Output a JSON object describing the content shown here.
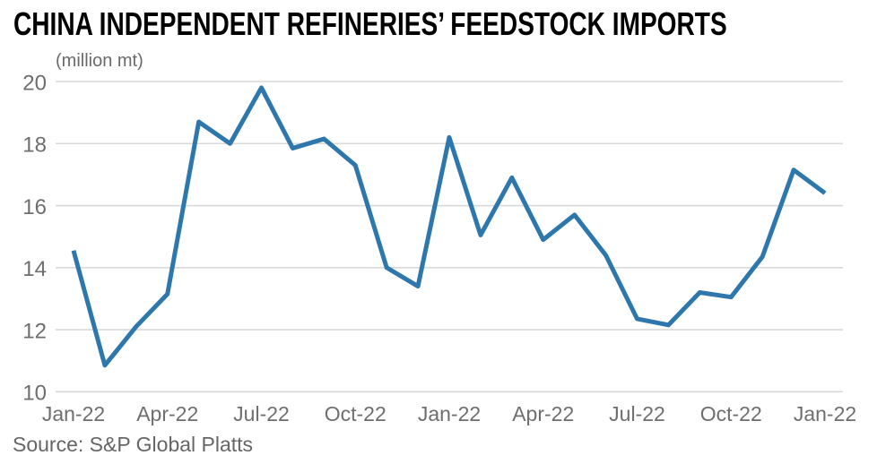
{
  "title": "CHINA INDEPENDENT REFINERIES’ FEEDSTOCK IMPORTS",
  "subtitle": "(million mt)",
  "source": "Source: S&P Global Platts",
  "colors": {
    "line": "#2e77ad",
    "grid": "#d9d9d9",
    "axis_text": "#6e6e6e",
    "title_text": "#000000",
    "source_text": "#666666",
    "background": "#ffffff"
  },
  "chart_data": {
    "type": "line",
    "title": "CHINA INDEPENDENT REFINERIES’ FEEDSTOCK IMPORTS",
    "ylabel": "(million mt)",
    "xlabel": "",
    "ylim": [
      10,
      20
    ],
    "y_ticks": [
      10,
      12,
      14,
      16,
      18,
      20
    ],
    "grid": "horizontal",
    "legend": "none",
    "n_points": 25,
    "x_tick_labels": [
      "Jan-22",
      "Apr-22",
      "Jul-22",
      "Oct-22",
      "Jan-22",
      "Apr-22",
      "Jul-22",
      "Oct-22",
      "Jan-22"
    ],
    "x_tick_point_indices": [
      0,
      3,
      6,
      9,
      12,
      15,
      18,
      21,
      24
    ],
    "series": [
      {
        "name": "Feedstock imports (million mt)",
        "values": [
          14.55,
          10.85,
          12.1,
          13.15,
          18.7,
          18.0,
          19.8,
          17.85,
          18.15,
          17.3,
          14.0,
          13.4,
          18.2,
          15.05,
          16.9,
          14.9,
          15.7,
          14.4,
          12.35,
          12.15,
          13.2,
          13.05,
          14.35,
          17.15,
          16.4
        ]
      }
    ]
  }
}
